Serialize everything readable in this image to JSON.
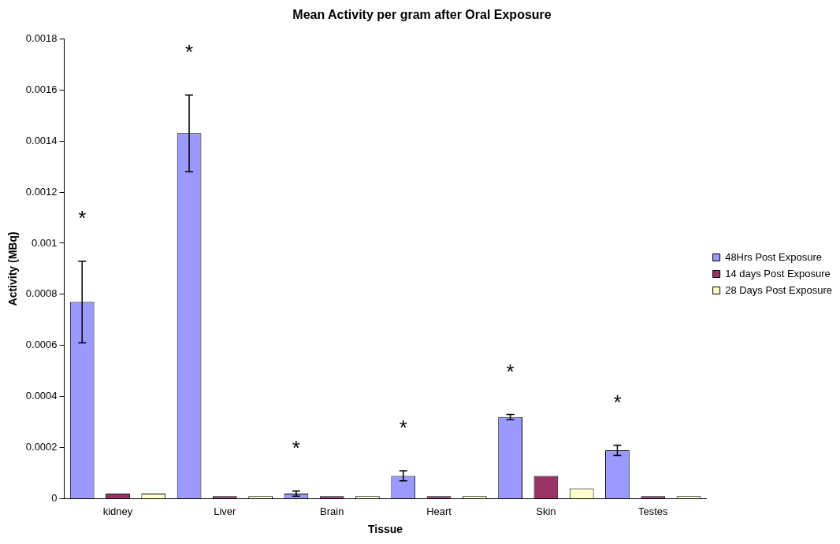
{
  "chart_data": {
    "type": "bar",
    "title": "Mean Activity per gram after Oral Exposure",
    "xlabel": "Tissue",
    "ylabel": "Activity (MBq)",
    "categories": [
      "kidney",
      "Liver",
      "Brain",
      "Heart",
      "Skin",
      "Testes"
    ],
    "series": [
      {
        "name": "48Hrs Post Exposure",
        "color": "#9999ff",
        "values": [
          0.00077,
          0.00143,
          2e-05,
          9e-05,
          0.00032,
          0.00019
        ],
        "errors": [
          0.00016,
          0.00015,
          1e-05,
          2e-05,
          1e-05,
          2e-05
        ]
      },
      {
        "name": "14 days Post Exposure",
        "color": "#993366",
        "values": [
          2e-05,
          1e-05,
          1e-05,
          1e-05,
          9e-05,
          1e-05
        ]
      },
      {
        "name": "28 Days Post Exposure",
        "color": "#ffffcc",
        "values": [
          2e-05,
          1e-05,
          1e-05,
          1e-05,
          4e-05,
          1e-05
        ]
      }
    ],
    "ylim": [
      0,
      0.0018
    ],
    "yticks": [
      0,
      0.0002,
      0.0004,
      0.0006,
      0.0008,
      0.001,
      0.0012,
      0.0014,
      0.0016,
      0.0018
    ],
    "grid": false,
    "legend": "right",
    "annotations": [
      "*",
      "*",
      "*",
      "*",
      "*",
      "*"
    ]
  }
}
